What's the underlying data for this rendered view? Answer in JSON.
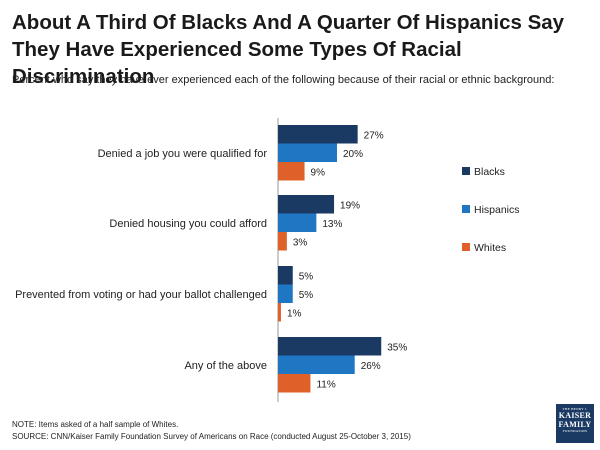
{
  "title": "About A Third Of Blacks And A Quarter Of Hispanics Say They Have Experienced Some Types Of Racial Discrimination",
  "subtitle": "Percent who say they have ever experienced each of the following because of their racial or ethnic background:",
  "note": "NOTE: Items asked of a half sample of Whites.",
  "source": "SOURCE: CNN/Kaiser Family Foundation Survey of Americans on Race (conducted August 25-October 3, 2015)",
  "logo": {
    "top": "THE HENRY J.",
    "line1": "KAISER",
    "line2": "FAMILY",
    "bottom": "FOUNDATION"
  },
  "chart_data": {
    "type": "bar",
    "orientation": "horizontal",
    "categories": [
      "Denied a job you were qualified for",
      "Denied housing you could afford",
      "Prevented from voting or had your ballot challenged",
      "Any of the above"
    ],
    "series": [
      {
        "name": "Blacks",
        "color": "#1b3a63",
        "values": [
          27,
          19,
          5,
          35
        ]
      },
      {
        "name": "Hispanics",
        "color": "#1f77c4",
        "values": [
          20,
          13,
          5,
          26
        ]
      },
      {
        "name": "Whites",
        "color": "#e0602a",
        "values": [
          9,
          3,
          1,
          11
        ]
      }
    ],
    "value_suffix": "%",
    "xlim": [
      0,
      100
    ],
    "legend_position": "right",
    "grid": false
  }
}
